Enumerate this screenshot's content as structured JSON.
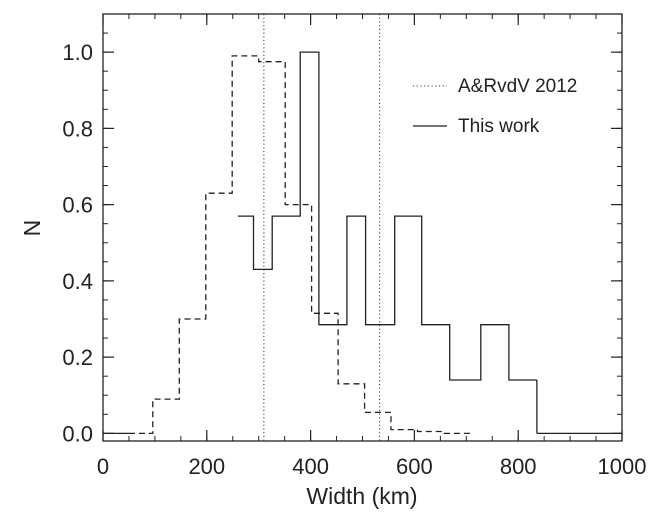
{
  "chart_data": {
    "type": "line",
    "title": "",
    "xlabel": "Width (km)",
    "ylabel": "N",
    "xlim": [
      0,
      1000
    ],
    "ylim": [
      -0.02,
      1.1
    ],
    "xticks": [
      0,
      200,
      400,
      600,
      800,
      1000
    ],
    "xtick_labels": [
      "0",
      "200",
      "400",
      "600",
      "800",
      "1000"
    ],
    "yticks": [
      0.0,
      0.2,
      0.4,
      0.6,
      0.8,
      1.0
    ],
    "ytick_labels": [
      "0.0",
      "0.2",
      "0.4",
      "0.6",
      "0.8",
      "1.0"
    ],
    "grid": false,
    "legend_position": "top-right",
    "vertical_lines": [
      310,
      533
    ],
    "series": [
      {
        "name": "A&RvdV 2012",
        "style": "dotted",
        "role": "legend-only"
      },
      {
        "name": "",
        "style": "dashed",
        "bin_edges": [
          50,
          96,
          147,
          198,
          249,
          300,
          351,
          402,
          453,
          504,
          555,
          606,
          657,
          708
        ],
        "values": [
          0.0,
          0.09,
          0.3,
          0.63,
          0.99,
          0.975,
          0.6,
          0.315,
          0.13,
          0.055,
          0.01,
          0.005,
          0.0
        ]
      },
      {
        "name": "This work",
        "style": "solid",
        "bin_edges": [
          260,
          290,
          326,
          380,
          416,
          470,
          506,
          562,
          614,
          668,
          728,
          782,
          836
        ],
        "values": [
          0.57,
          0.43,
          0.57,
          1.0,
          0.285,
          0.57,
          0.285,
          0.57,
          0.285,
          0.14,
          0.285,
          0.14
        ]
      }
    ],
    "baseline_segments": [
      [
        0,
        50
      ],
      [
        836,
        1000
      ]
    ]
  }
}
